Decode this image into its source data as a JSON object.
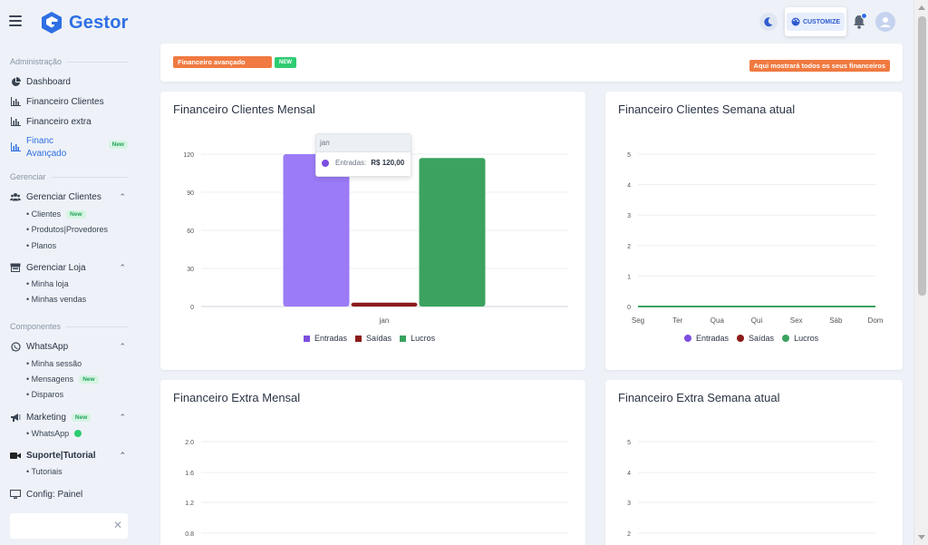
{
  "app": {
    "name": "Gestor"
  },
  "header": {
    "customize_label": "CUSTOMIZE"
  },
  "sidebar": {
    "sections": [
      {
        "title": "Administração"
      },
      {
        "title": "Gerenciar"
      },
      {
        "title": "Componentes"
      }
    ],
    "items": {
      "dashboard": "Dashboard",
      "fin_clientes": "Financeiro Clientes",
      "fin_extra": "Financeiro extra",
      "fin_avancado_1": "Financ",
      "fin_avancado_2": "Avançado",
      "fin_avancado_badge": "New",
      "ger_clientes": "Gerenciar Clientes",
      "clientes": "• Clientes",
      "clientes_badge": "New",
      "produtos": "• Produtos|Provedores",
      "planos": "• Planos",
      "ger_loja": "Gerenciar Loja",
      "minha_loja": "• Minha loja",
      "minhas_vendas": "• Minhas vendas",
      "whatsapp": "WhatsApp",
      "minha_sessao": "• Minha sessão",
      "mensagens": "• Mensagens",
      "mensagens_badge": "New",
      "disparos": "• Disparos",
      "marketing": "Marketing",
      "marketing_badge": "New",
      "mk_whatsapp": "• WhatsApp",
      "suporte": "Suporte|Tutorial",
      "tutoriais": "• Tutoriais",
      "config": "Config: Painel"
    },
    "search": {
      "value": ""
    }
  },
  "topbar": {
    "tag": "Financeiro avançado",
    "new_badge": "NEW",
    "info": "Aqui mostrará todos os seus financeiros"
  },
  "legend": {
    "entradas": "Entradas",
    "saidas": "Saídas",
    "lucros": "Lucros"
  },
  "colors": {
    "entradas": "#9b7bf7",
    "saidas": "#8b1a1a",
    "lucros": "#3ba35f",
    "legend_entradas": "#7c4ee0"
  },
  "tooltip": {
    "title": "jan",
    "label": "Entradas:",
    "value": "R$ 120,00"
  },
  "cards": {
    "c1": "Financeiro Clientes Mensal",
    "c2": "Financeiro Clientes Semana atual",
    "c3": "Financeiro Extra Mensal",
    "c4": "Financeiro Extra Semana atual"
  },
  "chart_data": [
    {
      "type": "bar",
      "title": "Financeiro Clientes Mensal",
      "categories": [
        "jan"
      ],
      "series": [
        {
          "name": "Entradas",
          "values": [
            120
          ]
        },
        {
          "name": "Saídas",
          "values": [
            3
          ]
        },
        {
          "name": "Lucros",
          "values": [
            117
          ]
        }
      ],
      "yticks": [
        0,
        30,
        60,
        90,
        120
      ],
      "ylim": [
        0,
        120
      ]
    },
    {
      "type": "line",
      "title": "Financeiro Clientes Semana atual",
      "categories": [
        "Seg",
        "Ter",
        "Qua",
        "Qui",
        "Sex",
        "Sáb",
        "Dom"
      ],
      "series": [
        {
          "name": "Entradas",
          "values": [
            0,
            0,
            0,
            0,
            0,
            0,
            0
          ]
        },
        {
          "name": "Saídas",
          "values": [
            0,
            0,
            0,
            0,
            0,
            0,
            0
          ]
        },
        {
          "name": "Lucros",
          "values": [
            0,
            0,
            0,
            0,
            0,
            0,
            0
          ]
        }
      ],
      "yticks": [
        0,
        1,
        2,
        3,
        4,
        5
      ],
      "ylim": [
        0,
        5
      ]
    },
    {
      "type": "bar",
      "title": "Financeiro Extra Mensal",
      "yticks": [
        "0.8",
        "1.2",
        "1.6",
        "2.0"
      ]
    },
    {
      "type": "line",
      "title": "Financeiro Extra Semana atual",
      "yticks": [
        2,
        3,
        4,
        5
      ]
    }
  ]
}
